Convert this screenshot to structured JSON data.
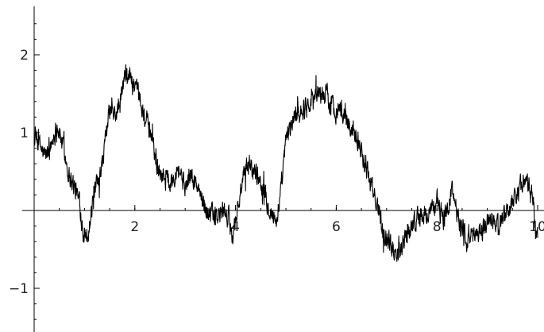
{
  "colors": {
    "background": "#ffffff",
    "axis": "#000000",
    "series": "#000000",
    "text": "#222222"
  },
  "chart_data": {
    "type": "line",
    "title": "",
    "xlabel": "",
    "ylabel": "",
    "xlim": [
      0,
      10
    ],
    "ylim": [
      -1.55,
      2.6
    ],
    "grid": false,
    "legend": "none",
    "x_ticks": [
      2,
      4,
      6,
      8,
      10
    ],
    "x_tick_labels": [
      "2",
      "4",
      "6",
      "8",
      "10"
    ],
    "y_ticks": [
      -1,
      1,
      2
    ],
    "y_tick_labels": [
      "−1",
      "1",
      "2"
    ],
    "series": [
      {
        "color": "#000000",
        "x": [
          0,
          0.1,
          0.2,
          0.3,
          0.45,
          0.55,
          0.7,
          0.8,
          0.9,
          1.0,
          1.1,
          1.2,
          1.3,
          1.4,
          1.5,
          1.6,
          1.7,
          1.8,
          1.9,
          2.0,
          2.1,
          2.2,
          2.35,
          2.45,
          2.6,
          2.7,
          2.85,
          3.0,
          3.1,
          3.2,
          3.4,
          3.6,
          3.8,
          3.95,
          4.1,
          4.25,
          4.4,
          4.55,
          4.7,
          4.8,
          4.9,
          5.0,
          5.1,
          5.2,
          5.35,
          5.5,
          5.65,
          5.8,
          5.95,
          6.1,
          6.25,
          6.4,
          6.55,
          6.7,
          6.85,
          7.0,
          7.2,
          7.4,
          7.6,
          7.8,
          8.0,
          8.15,
          8.3,
          8.45,
          8.6,
          8.75,
          8.9,
          9.05,
          9.2,
          9.4,
          9.6,
          9.75,
          9.9,
          10.0
        ],
        "y": [
          0.95,
          0.85,
          0.7,
          0.75,
          1.1,
          0.9,
          0.45,
          0.3,
          0.1,
          -0.35,
          -0.2,
          0.25,
          0.35,
          0.8,
          1.3,
          1.2,
          1.35,
          1.7,
          1.75,
          1.55,
          1.4,
          1.2,
          0.9,
          0.55,
          0.45,
          0.35,
          0.6,
          0.3,
          0.45,
          0.35,
          0.05,
          -0.1,
          0.0,
          -0.3,
          0.25,
          0.6,
          0.5,
          0.3,
          0.0,
          -0.15,
          0.2,
          0.9,
          1.1,
          1.25,
          1.3,
          1.45,
          1.5,
          1.5,
          1.3,
          1.3,
          1.1,
          1.0,
          0.65,
          0.3,
          0.0,
          -0.35,
          -0.55,
          -0.3,
          -0.1,
          -0.05,
          0.1,
          -0.1,
          0.25,
          -0.1,
          -0.4,
          -0.3,
          -0.25,
          -0.1,
          -0.2,
          0.0,
          0.25,
          0.4,
          0.15,
          -0.35
        ]
      }
    ]
  }
}
